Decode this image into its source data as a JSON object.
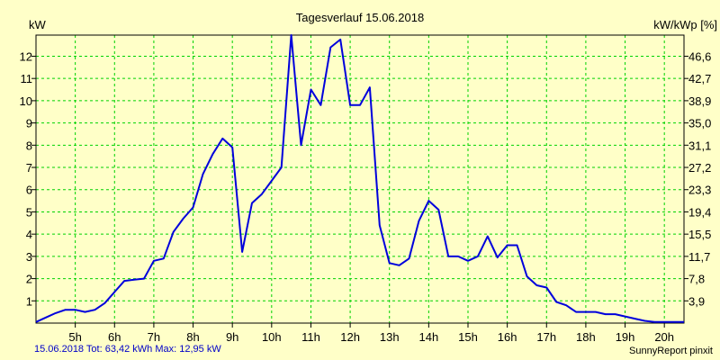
{
  "chart_data": {
    "type": "line",
    "title": "Tagesverlauf 15.06.2018",
    "ylabel_left": "kW",
    "ylabel_right": "kW/kWp [%]",
    "x_tick_labels": [
      "5h",
      "6h",
      "7h",
      "8h",
      "9h",
      "10h",
      "11h",
      "12h",
      "13h",
      "14h",
      "15h",
      "16h",
      "17h",
      "18h",
      "19h",
      "20h"
    ],
    "x_tick_values": [
      5,
      6,
      7,
      8,
      9,
      10,
      11,
      12,
      13,
      14,
      15,
      16,
      17,
      18,
      19,
      20
    ],
    "xlim": [
      4.0,
      20.5
    ],
    "ylim": [
      0,
      12.95
    ],
    "y_ticks_left": [
      1,
      2,
      3,
      4,
      5,
      6,
      7,
      8,
      9,
      10,
      11,
      12
    ],
    "y_ticks_right": [
      "3,9",
      "7,8",
      "11,7",
      "15,5",
      "19,4",
      "23,3",
      "27,2",
      "31,1",
      "35,0",
      "38,9",
      "42,7",
      "46,6"
    ],
    "grid": true,
    "line_color": "#0000dc",
    "grid_color": "#00d200",
    "series": [
      {
        "name": "kW",
        "x": [
          4.0,
          4.25,
          4.5,
          4.75,
          5.0,
          5.25,
          5.5,
          5.75,
          6.0,
          6.25,
          6.5,
          6.75,
          7.0,
          7.25,
          7.5,
          7.75,
          8.0,
          8.25,
          8.5,
          8.75,
          9.0,
          9.25,
          9.5,
          9.75,
          10.0,
          10.25,
          10.5,
          10.75,
          11.0,
          11.25,
          11.5,
          11.75,
          12.0,
          12.25,
          12.5,
          12.75,
          13.0,
          13.25,
          13.5,
          13.75,
          14.0,
          14.25,
          14.5,
          14.75,
          15.0,
          15.25,
          15.5,
          15.75,
          16.0,
          16.25,
          16.5,
          16.75,
          17.0,
          17.25,
          17.5,
          17.75,
          18.0,
          18.25,
          18.5,
          18.75,
          19.0,
          19.25,
          19.5,
          19.75,
          20.0,
          20.25,
          20.5
        ],
        "values": [
          0.05,
          0.25,
          0.45,
          0.6,
          0.6,
          0.5,
          0.6,
          0.9,
          1.4,
          1.9,
          1.95,
          2.0,
          2.8,
          2.9,
          4.1,
          4.7,
          5.2,
          6.7,
          7.6,
          8.3,
          7.9,
          3.2,
          5.4,
          5.8,
          6.4,
          7.0,
          12.95,
          8.0,
          10.5,
          9.8,
          12.4,
          12.75,
          9.8,
          9.8,
          10.6,
          4.4,
          2.7,
          2.6,
          2.9,
          4.6,
          5.5,
          5.1,
          3.0,
          3.0,
          2.8,
          3.0,
          3.9,
          2.95,
          3.5,
          3.5,
          2.1,
          1.7,
          1.6,
          0.95,
          0.8,
          0.5,
          0.5,
          0.5,
          0.4,
          0.4,
          0.3,
          0.2,
          0.1,
          0.05,
          0.05,
          0.05,
          0.05
        ]
      }
    ]
  },
  "footer": {
    "left": "15.06.2018 Tot: 63,42 kWh Max: 12,95 kW",
    "right": "SunnyReport pinxit"
  }
}
